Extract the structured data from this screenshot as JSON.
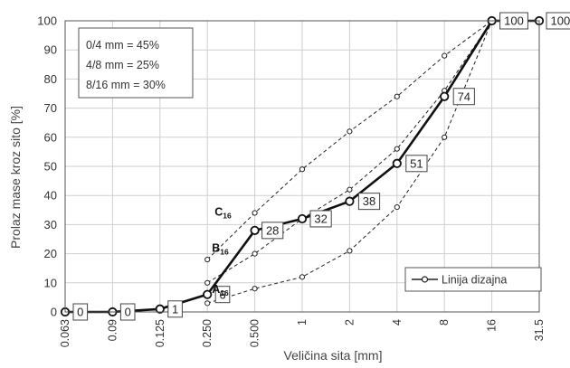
{
  "chart_data": {
    "type": "line",
    "xlabel": "Veličina sita [mm]",
    "ylabel": "Prolaz mase kroz sito [%]",
    "x_categories": [
      "0.063",
      "0.09",
      "0.125",
      "0.250",
      "0.500",
      "1",
      "2",
      "4",
      "8",
      "16",
      "31.5"
    ],
    "y_ticks": [
      0,
      10,
      20,
      30,
      40,
      50,
      60,
      70,
      80,
      90,
      100
    ],
    "ylim": [
      0,
      100
    ],
    "grid": true,
    "mix_box": [
      "0/4 mm = 45%",
      "4/8 mm = 25%",
      "8/16 mm = 30%"
    ],
    "legend": {
      "label": "Linija dizajna",
      "position": "bottom-right"
    },
    "design_line": {
      "name": "Linija dizajna",
      "values": [
        0,
        0,
        1,
        6,
        28,
        32,
        38,
        51,
        74,
        100,
        100
      ],
      "labels": [
        "0",
        "0",
        "1",
        "6",
        "28",
        "32",
        "38",
        "51",
        "74",
        "100",
        "100"
      ]
    },
    "limit_curves": [
      {
        "label": "A16",
        "main": "A",
        "sub": "16",
        "x_start_index": 3,
        "values": [
          3,
          8,
          12,
          21,
          36,
          60,
          100
        ]
      },
      {
        "label": "B16",
        "main": "B",
        "sub": "16",
        "x_start_index": 3,
        "values": [
          10,
          20,
          32,
          42,
          56,
          76,
          100
        ]
      },
      {
        "label": "C16",
        "main": "C",
        "sub": "16",
        "x_start_index": 3,
        "values": [
          18,
          34,
          49,
          62,
          74,
          88,
          100
        ]
      }
    ]
  }
}
